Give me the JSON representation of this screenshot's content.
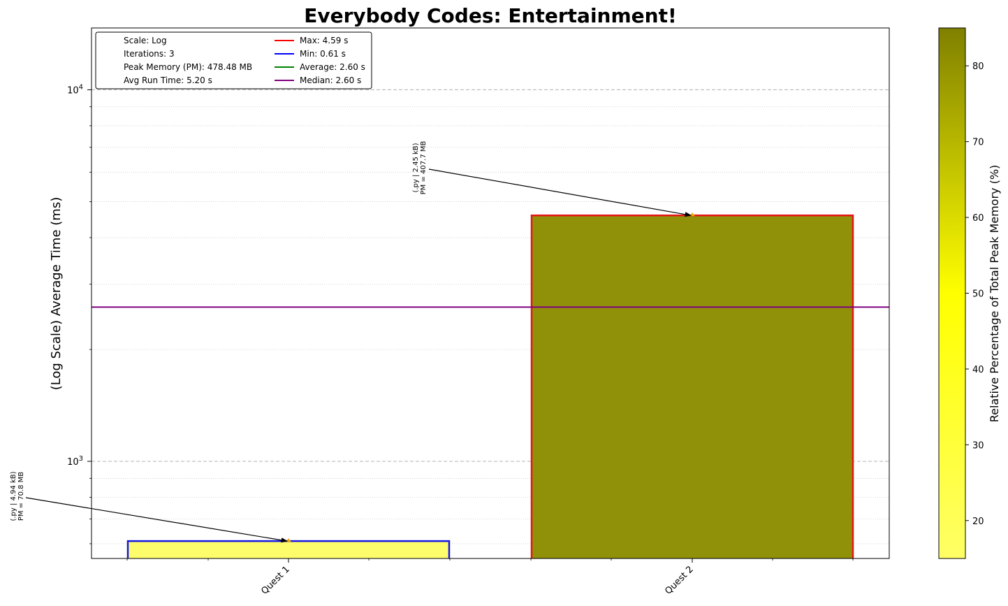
{
  "chart_data": {
    "type": "bar",
    "title": "Everybody Codes: Entertainment!",
    "ylabel": "(Log Scale) Average Time (ms)",
    "xlabel": "",
    "yscale": "log",
    "ylim": [
      545,
      16000
    ],
    "y_ticks": [
      {
        "value": 1000,
        "label": "10",
        "exp": "3"
      },
      {
        "value": 10000,
        "label": "10",
        "exp": "4"
      }
    ],
    "grid": "y major dashed, y minor dotted",
    "categories": [
      "Quest 1",
      "Quest 2"
    ],
    "values": [
      610,
      4590
    ],
    "bar_fill_colors": [
      "#fdfc6b",
      "#909109"
    ],
    "bar_edge_colors": [
      "#1515e6",
      "#e61515"
    ],
    "annotations": [
      {
        "category": "Quest 1",
        "line1": "(.py | 4.94 kB)",
        "line2": "PM = 70.8 MB"
      },
      {
        "category": "Quest 2",
        "line1": "(.py | 2.45 kB)",
        "line2": "PM = 407.7 MB"
      }
    ],
    "reference_lines": [
      {
        "label": "Median: 2.60 s",
        "value": 2600,
        "color": "#800080"
      }
    ],
    "legend": {
      "placement": "top-left",
      "info": [
        "Scale: Log",
        "Iterations: 3",
        "Peak Memory (PM): 478.48 MB",
        "Avg Run Time: 5.20 s"
      ],
      "lines": [
        {
          "label": "Max: 4.59 s",
          "color": "#ff0000"
        },
        {
          "label": "Min: 0.61 s",
          "color": "#0000ff"
        },
        {
          "label": "Average: 2.60 s",
          "color": "#008000"
        },
        {
          "label": "Median: 2.60 s",
          "color": "#800080"
        }
      ]
    },
    "colorbar": {
      "label": "Relative Percentage of Total Peak Memory (%)",
      "range": [
        15,
        85
      ],
      "ticks": [
        20,
        30,
        40,
        50,
        60,
        70,
        80
      ],
      "colors": {
        "low": "#ffff66",
        "mid": "#ffff00",
        "high": "#808000"
      }
    }
  }
}
